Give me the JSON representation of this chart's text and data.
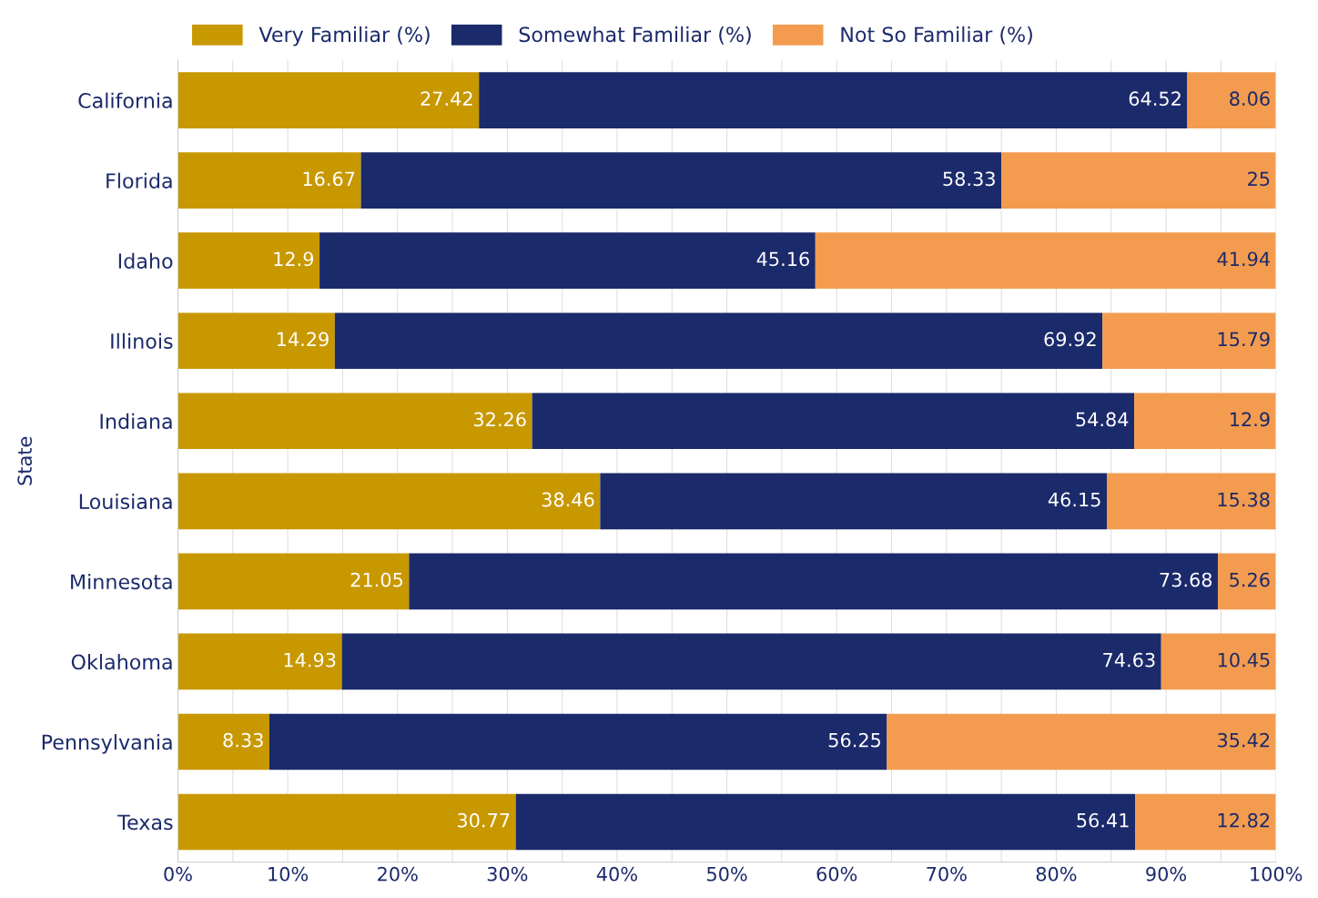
{
  "chart_data": {
    "type": "bar",
    "orientation": "horizontal",
    "stacked": true,
    "ylabel": "State",
    "categories": [
      "California",
      "Florida",
      "Idaho",
      "Illinois",
      "Indiana",
      "Louisiana",
      "Minnesota",
      "Oklahoma",
      "Pennsylvania",
      "Texas"
    ],
    "series": [
      {
        "name": "Very Familiar (%)",
        "color": "#c89800",
        "values": [
          27.42,
          16.67,
          12.9,
          14.29,
          32.26,
          38.46,
          21.05,
          14.93,
          8.33,
          30.77
        ]
      },
      {
        "name": "Somewhat Familiar (%)",
        "color": "#1b2a6b",
        "values": [
          64.52,
          58.33,
          45.16,
          69.92,
          54.84,
          46.15,
          73.68,
          74.63,
          56.25,
          56.41
        ]
      },
      {
        "name": "Not So Familiar (%)",
        "color": "#f39c50",
        "values": [
          8.06,
          25,
          41.94,
          15.79,
          12.9,
          15.38,
          5.26,
          10.45,
          35.42,
          12.82
        ]
      }
    ],
    "xlim": [
      0,
      100
    ],
    "xticks": [
      {
        "value": 0,
        "label": "0%"
      },
      {
        "value": 5,
        "label": null
      },
      {
        "value": 10,
        "label": "10%"
      },
      {
        "value": 15,
        "label": null
      },
      {
        "value": 20,
        "label": "20%"
      },
      {
        "value": 25,
        "label": null
      },
      {
        "value": 30,
        "label": "30%"
      },
      {
        "value": 35,
        "label": null
      },
      {
        "value": 40,
        "label": "40%"
      },
      {
        "value": 45,
        "label": null
      },
      {
        "value": 50,
        "label": "50%"
      },
      {
        "value": 55,
        "label": null
      },
      {
        "value": 60,
        "label": "60%"
      },
      {
        "value": 65,
        "label": null
      },
      {
        "value": 70,
        "label": "70%"
      },
      {
        "value": 75,
        "label": null
      },
      {
        "value": 80,
        "label": "80%"
      },
      {
        "value": 85,
        "label": null
      },
      {
        "value": 90,
        "label": "90%"
      },
      {
        "value": 95,
        "label": null
      },
      {
        "value": 100,
        "label": "100%"
      }
    ],
    "grid": "x",
    "legend": "top",
    "data_labels": true
  }
}
